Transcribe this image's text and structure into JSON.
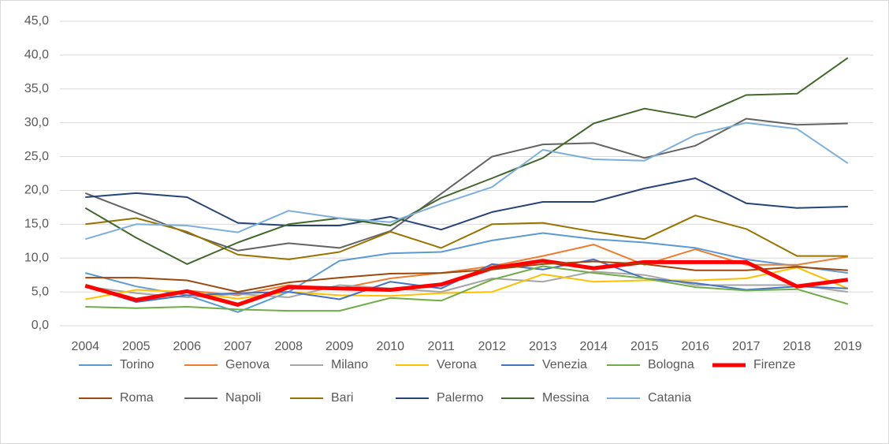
{
  "chart_data": {
    "type": "line",
    "categories": [
      "2004",
      "2005",
      "2006",
      "2007",
      "2008",
      "2009",
      "2010",
      "2011",
      "2012",
      "2013",
      "2014",
      "2015",
      "2016",
      "2017",
      "2018",
      "2019"
    ],
    "ylim": [
      0,
      45
    ],
    "yticks": [
      {
        "value": 0,
        "label": "0,0"
      },
      {
        "value": 5,
        "label": "5,0"
      },
      {
        "value": 10,
        "label": "10,0"
      },
      {
        "value": 15,
        "label": "15,0"
      },
      {
        "value": 20,
        "label": "20,0"
      },
      {
        "value": 25,
        "label": "25,0"
      },
      {
        "value": 30,
        "label": "30,0"
      },
      {
        "value": 35,
        "label": "35,0"
      },
      {
        "value": 40,
        "label": "40,0"
      },
      {
        "value": 45,
        "label": "45,0"
      }
    ],
    "grid": true,
    "legend": "bottom",
    "series": [
      {
        "name": "Torino",
        "color": "#5b9bd5",
        "values": [
          7.8,
          5.8,
          4.5,
          2.0,
          5.0,
          9.6,
          10.7,
          10.9,
          12.6,
          13.7,
          12.8,
          12.3,
          11.5,
          9.8,
          8.8,
          7.8
        ]
      },
      {
        "name": "Genova",
        "color": "#ed7d31",
        "values": [
          6.0,
          4.0,
          5.2,
          4.5,
          6.0,
          5.5,
          7.0,
          7.8,
          8.8,
          10.3,
          12.0,
          9.0,
          11.3,
          9.0,
          9.0,
          10.2
        ]
      },
      {
        "name": "Milano",
        "color": "#a5a5a5",
        "values": [
          5.8,
          4.8,
          4.2,
          4.7,
          4.2,
          6.0,
          5.5,
          5.0,
          7.0,
          6.5,
          8.0,
          7.5,
          6.0,
          6.0,
          6.0,
          5.0
        ]
      },
      {
        "name": "Verona",
        "color": "#ffc000",
        "values": [
          3.9,
          5.3,
          5.0,
          4.0,
          5.0,
          4.5,
          4.4,
          4.8,
          5.0,
          7.6,
          6.5,
          6.7,
          6.7,
          7.0,
          8.6,
          5.5
        ]
      },
      {
        "name": "Venezia",
        "color": "#4472c4",
        "values": [
          5.9,
          3.5,
          4.5,
          4.8,
          5.0,
          3.9,
          6.5,
          5.5,
          9.1,
          8.3,
          9.8,
          7.0,
          6.3,
          5.3,
          5.8,
          5.5
        ]
      },
      {
        "name": "Bologna",
        "color": "#70ad47",
        "values": [
          2.8,
          2.6,
          2.8,
          2.4,
          2.2,
          2.2,
          4.1,
          3.7,
          6.8,
          8.8,
          7.8,
          7.0,
          5.7,
          5.2,
          5.4,
          3.2
        ]
      },
      {
        "name": "Firenze",
        "color": "#ff0000",
        "width": 5,
        "values": [
          5.9,
          3.8,
          5.1,
          3.1,
          5.7,
          5.5,
          5.3,
          6.1,
          8.5,
          9.6,
          8.5,
          9.4,
          9.4,
          9.4,
          5.8,
          6.8
        ]
      },
      {
        "name": "Roma",
        "color": "#9e480e",
        "values": [
          7.1,
          7.1,
          6.7,
          5.0,
          6.4,
          7.1,
          7.7,
          7.8,
          8.3,
          9.1,
          9.5,
          9.1,
          8.2,
          8.2,
          8.7,
          8.2
        ]
      },
      {
        "name": "Napoli",
        "color": "#636363",
        "values": [
          19.6,
          16.7,
          13.7,
          11.1,
          12.2,
          11.5,
          14.0,
          19.5,
          25.0,
          26.8,
          27.0,
          24.8,
          26.6,
          30.6,
          29.7,
          29.9
        ]
      },
      {
        "name": "Bari",
        "color": "#997300",
        "values": [
          15.0,
          15.9,
          13.9,
          10.5,
          9.8,
          10.9,
          13.9,
          11.5,
          15.0,
          15.2,
          13.9,
          12.8,
          16.3,
          14.3,
          10.3,
          10.3
        ]
      },
      {
        "name": "Palermo",
        "color": "#264478",
        "values": [
          19.0,
          19.6,
          19.0,
          15.2,
          14.8,
          14.8,
          16.1,
          14.2,
          16.8,
          18.3,
          18.3,
          20.3,
          21.8,
          18.1,
          17.4,
          17.6
        ]
      },
      {
        "name": "Messina",
        "color": "#43682b",
        "values": [
          17.4,
          13.0,
          9.1,
          12.3,
          15.0,
          15.9,
          14.8,
          18.9,
          21.8,
          24.8,
          29.9,
          32.1,
          30.8,
          34.1,
          34.3,
          39.6
        ]
      },
      {
        "name": "Catania",
        "color": "#7cafdd",
        "values": [
          12.8,
          15.0,
          14.8,
          13.8,
          17.0,
          15.9,
          15.3,
          18.0,
          20.5,
          26.0,
          24.6,
          24.4,
          28.2,
          30.0,
          29.1,
          24.0
        ]
      }
    ]
  }
}
